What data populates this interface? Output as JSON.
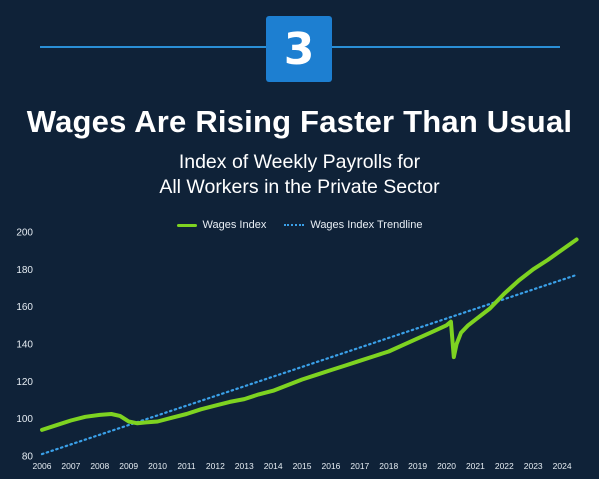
{
  "header": {
    "badge_number": "3",
    "title": "Wages Are Rising Faster Than Usual",
    "subtitle_line1": "Index of Weekly Payrolls for",
    "subtitle_line2": "All Workers in the Private Sector"
  },
  "colors": {
    "background": "#0f2238",
    "accent": "#1d7fd1",
    "wages_line": "#7ed321",
    "trendline": "#3aa0e8"
  },
  "chart_data": {
    "type": "line",
    "title": "Index of Weekly Payrolls for All Workers in the Private Sector",
    "xlabel": "",
    "ylabel": "",
    "xlim": [
      2006,
      2024.55
    ],
    "ylim": [
      80,
      200
    ],
    "x_ticks": [
      "2006",
      "2007",
      "2008",
      "2009",
      "2010",
      "2011",
      "2012",
      "2013",
      "2014",
      "2015",
      "2016",
      "2017",
      "2018",
      "2019",
      "2020",
      "2021",
      "2022",
      "2023",
      "2024"
    ],
    "y_ticks": [
      80,
      100,
      120,
      140,
      160,
      180,
      200
    ],
    "grid": false,
    "legend_position": "top-center",
    "series": [
      {
        "name": "Wages Index",
        "style": "solid",
        "x": [
          2006.0,
          2006.5,
          2007.0,
          2007.5,
          2008.0,
          2008.4,
          2008.7,
          2009.0,
          2009.3,
          2009.6,
          2010.0,
          2010.5,
          2011.0,
          2011.5,
          2012.0,
          2012.5,
          2013.0,
          2013.5,
          2014.0,
          2014.5,
          2015.0,
          2015.5,
          2016.0,
          2016.5,
          2017.0,
          2017.5,
          2018.0,
          2018.5,
          2019.0,
          2019.5,
          2020.0,
          2020.15,
          2020.25,
          2020.35,
          2020.5,
          2020.75,
          2021.0,
          2021.5,
          2022.0,
          2022.5,
          2023.0,
          2023.5,
          2024.0,
          2024.5
        ],
        "values": [
          94,
          96.5,
          99,
          101,
          102,
          102.5,
          101.5,
          98.5,
          97.5,
          98,
          98.5,
          100.5,
          102.5,
          105,
          107,
          109,
          110.5,
          113,
          115,
          118,
          121,
          123.5,
          126,
          128.5,
          131,
          133.5,
          136,
          139.5,
          143,
          146.5,
          150,
          152,
          133,
          140,
          146,
          150,
          153,
          159,
          167,
          174,
          180,
          185,
          190.5,
          196
        ]
      },
      {
        "name": "Wages Index Trendline",
        "style": "dotted",
        "x": [
          2006,
          2024.5
        ],
        "values": [
          81,
          177
        ]
      }
    ]
  }
}
